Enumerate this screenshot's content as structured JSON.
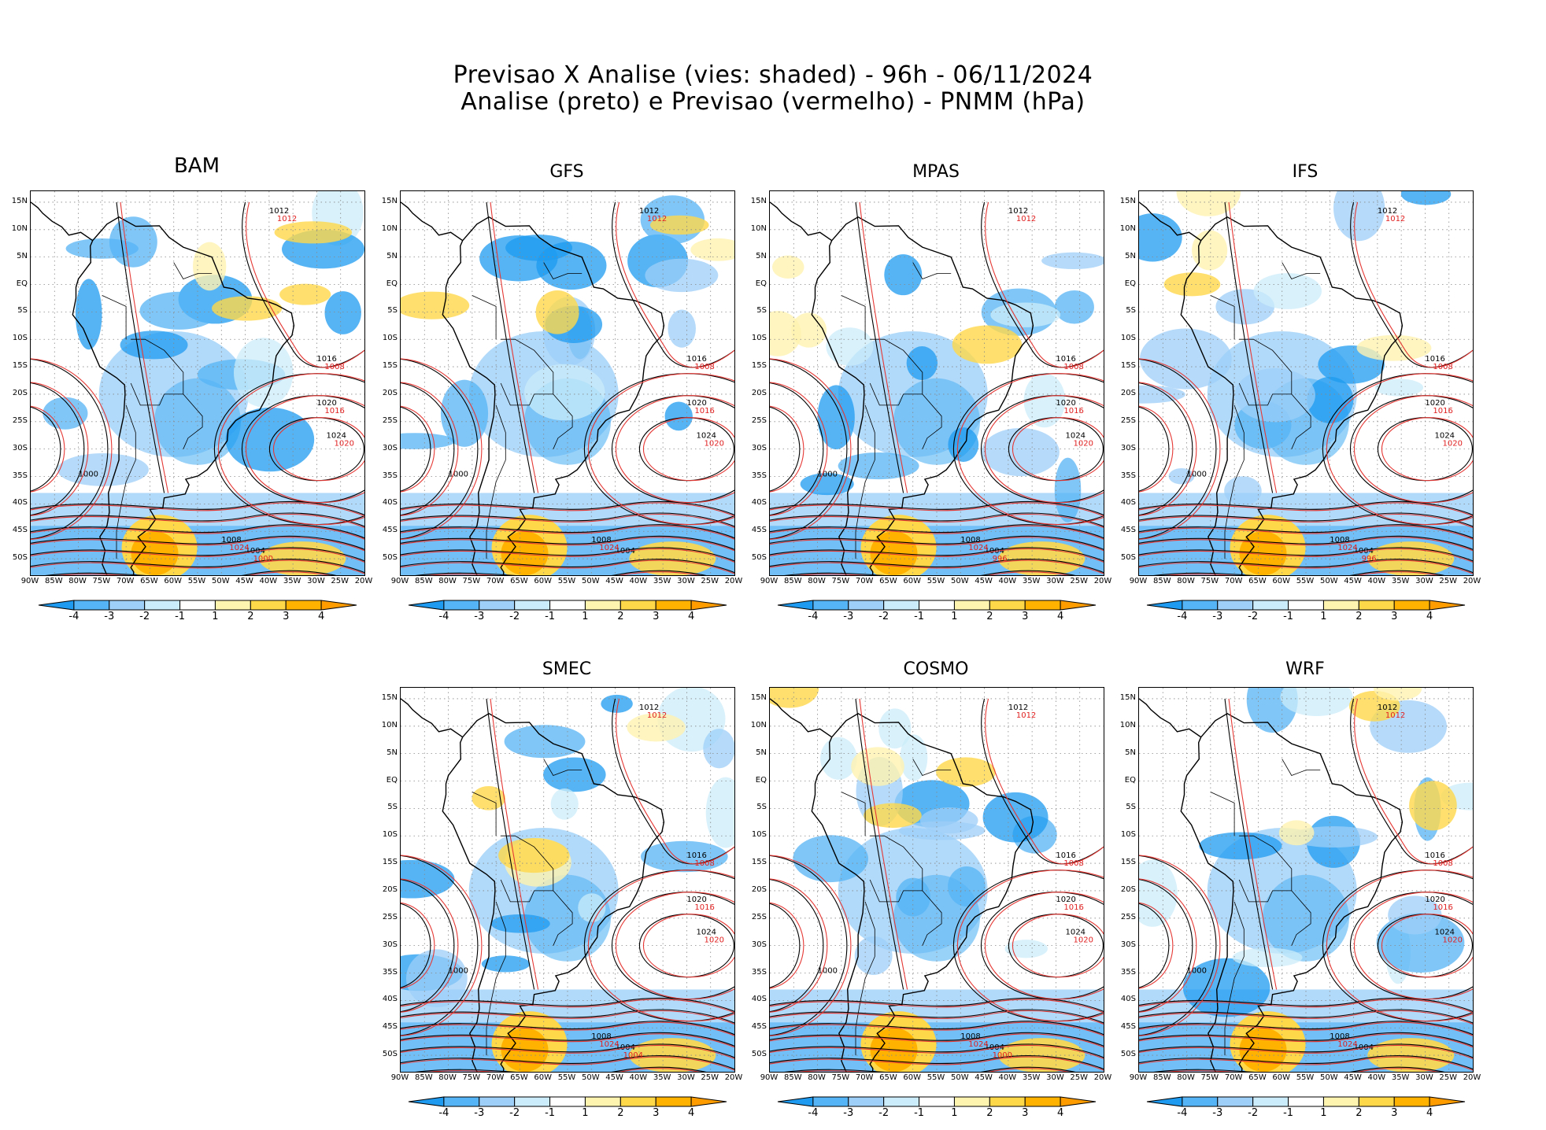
{
  "title_line1": "Previsao X Analise (vies: shaded) - 96h - 06/11/2024",
  "title_line2": "Analise (preto) e Previsao (vermelho) - PNMM (hPa)",
  "lat_labels": [
    "15N",
    "10N",
    "5N",
    "EQ",
    "5S",
    "10S",
    "15S",
    "20S",
    "25S",
    "30S",
    "35S",
    "40S",
    "45S",
    "50S"
  ],
  "lon_labels": [
    "90W",
    "85W",
    "80W",
    "75W",
    "70W",
    "65W",
    "60W",
    "55W",
    "50W",
    "45W",
    "40W",
    "35W",
    "30W",
    "25W",
    "20W"
  ],
  "colorbar": {
    "labels": [
      "-4",
      "-3",
      "-2",
      "-1",
      "1",
      "2",
      "3",
      "4"
    ],
    "colors": [
      "#1e9bf0",
      "#55b4f5",
      "#9ecff8",
      "#cbecfa",
      "#ffffff",
      "#fff3b0",
      "#ffd84a",
      "#ffb300",
      "#ff9d00"
    ]
  },
  "panels": [
    {
      "name": "BAM",
      "black_labels": [
        "1012",
        "1016",
        "1020",
        "1024",
        "1008",
        "1004",
        "1000"
      ],
      "red_labels": [
        "1012",
        "1008",
        "1016",
        "1020",
        "1024",
        "1000"
      ]
    },
    {
      "name": "GFS",
      "black_labels": [
        "1012",
        "1016",
        "1020",
        "1024",
        "1008",
        "1004",
        "1000"
      ],
      "red_labels": [
        "1012",
        "1008",
        "1016",
        "1020",
        "1024"
      ]
    },
    {
      "name": "MPAS",
      "black_labels": [
        "1012",
        "1016",
        "1020",
        "1024",
        "1008",
        "1004",
        "1000"
      ],
      "red_labels": [
        "1012",
        "1008",
        "1016",
        "1020",
        "1024",
        "996"
      ]
    },
    {
      "name": "IFS",
      "black_labels": [
        "1012",
        "1016",
        "1020",
        "1024",
        "1008",
        "1004",
        "1000"
      ],
      "red_labels": [
        "1012",
        "1008",
        "1016",
        "1020",
        "1024",
        "996"
      ]
    },
    {
      "name": "SMEC",
      "black_labels": [
        "1012",
        "1016",
        "1020",
        "1024",
        "1008",
        "1004",
        "1000"
      ],
      "red_labels": [
        "1012",
        "1008",
        "1016",
        "1020",
        "1024",
        "1004"
      ]
    },
    {
      "name": "COSMO",
      "black_labels": [
        "1012",
        "1016",
        "1020",
        "1024",
        "1008",
        "1004",
        "1000"
      ],
      "red_labels": [
        "1012",
        "1008",
        "1016",
        "1020",
        "1024",
        "1000"
      ]
    },
    {
      "name": "WRF",
      "black_labels": [
        "1012",
        "1016",
        "1020",
        "1024",
        "1008",
        "1004",
        "1000"
      ],
      "red_labels": [
        "1012",
        "1008",
        "1016",
        "1020",
        "1024"
      ]
    }
  ]
}
